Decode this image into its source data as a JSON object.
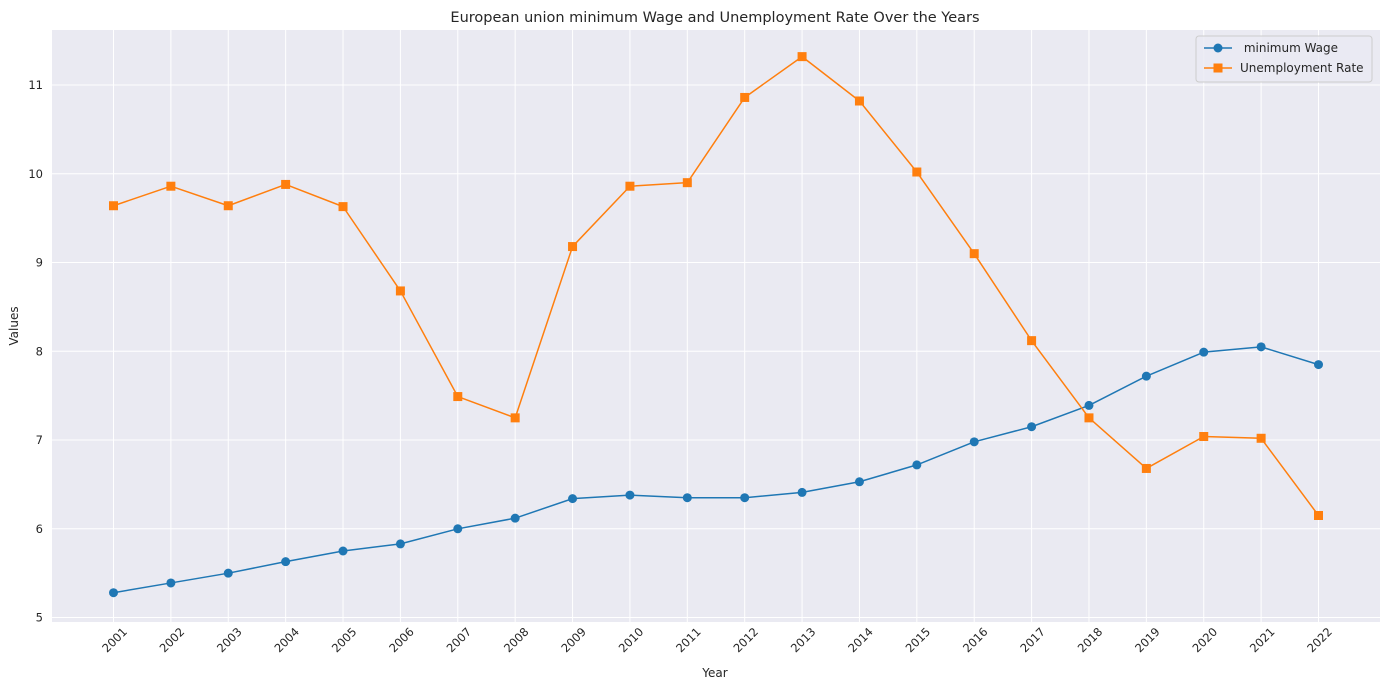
{
  "chart_data": {
    "type": "line",
    "title": "European union minimum Wage and Unemployment Rate Over the Years",
    "xlabel": "Year",
    "ylabel": "Values",
    "x": [
      "2001",
      "2002",
      "2003",
      "2004",
      "2005",
      "2006",
      "2007",
      "2008",
      "2009",
      "2010",
      "2011",
      "2012",
      "2013",
      "2014",
      "2015",
      "2016",
      "2017",
      "2018",
      "2019",
      "2020",
      "2021",
      "2022"
    ],
    "ylim": [
      4.95,
      11.62
    ],
    "yticks": [
      5,
      6,
      7,
      8,
      9,
      10,
      11
    ],
    "grid": true,
    "legend_position": "top-right",
    "series": [
      {
        "name": " minimum Wage",
        "marker": "circle",
        "color": "#1f77b4",
        "values": [
          5.28,
          5.39,
          5.5,
          5.63,
          5.75,
          5.83,
          6.0,
          6.12,
          6.34,
          6.38,
          6.35,
          6.35,
          6.41,
          6.53,
          6.72,
          6.98,
          7.15,
          7.39,
          7.72,
          7.99,
          8.05,
          7.85
        ]
      },
      {
        "name": "Unemployment Rate",
        "marker": "square",
        "color": "#ff7f0e",
        "values": [
          9.64,
          9.86,
          9.64,
          9.88,
          9.63,
          8.68,
          7.49,
          7.25,
          9.18,
          9.86,
          9.9,
          10.86,
          11.32,
          10.82,
          10.02,
          9.1,
          8.12,
          7.25,
          6.68,
          7.04,
          7.02,
          6.15
        ]
      }
    ]
  },
  "style": {
    "plot_background": "#eaeaf2",
    "grid_color": "#ffffff",
    "text_color": "#262626"
  }
}
